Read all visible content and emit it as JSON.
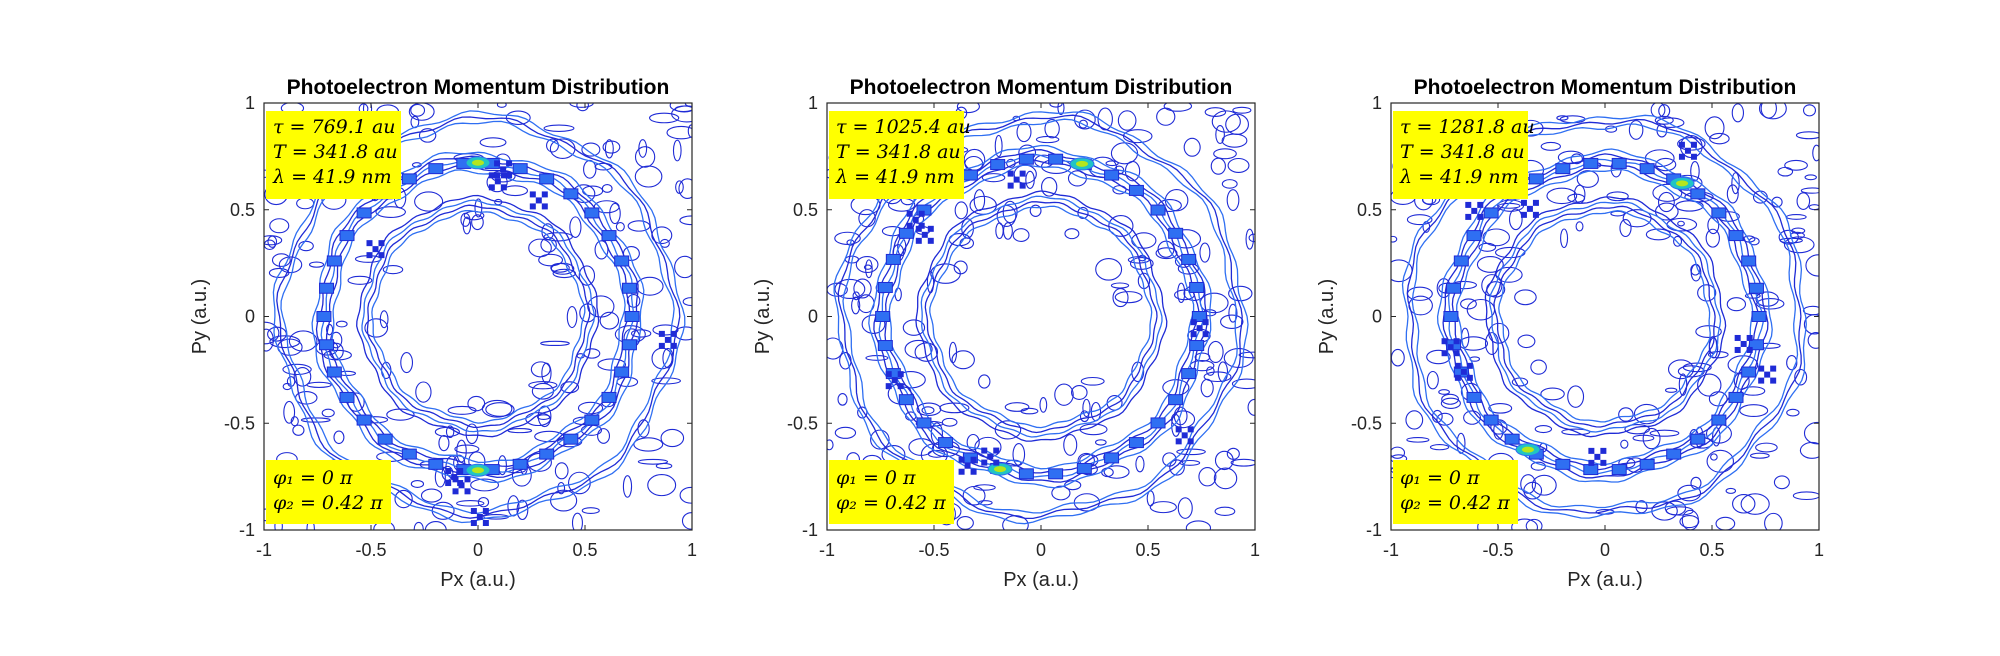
{
  "chart_data": [
    {
      "type": "contour",
      "title": "Photoelectron Momentum Distribution",
      "xlabel": "Px (a.u.)",
      "ylabel": "Py (a.u.)",
      "xlim": [
        -1,
        1
      ],
      "ylim": [
        -1,
        1
      ],
      "xticks": [
        "-1",
        "-0.5",
        "0",
        "0.5",
        "1"
      ],
      "yticks": [
        "-1",
        "-0.5",
        "0",
        "0.5",
        "1"
      ],
      "grid": false,
      "rings": [
        {
          "radius": 0.72,
          "intensity": "high"
        },
        {
          "radius": 0.52,
          "intensity": "medium"
        },
        {
          "radius": 0.92,
          "intensity": "low"
        }
      ],
      "hot_spot_angle_deg": 90,
      "annotation_top": [
        "τ = 769.1 au",
        "T = 341.8 au",
        "λ = 41.9 nm"
      ],
      "annotation_bottom": [
        "φ₁ = 0 π",
        "φ₂ = 0.42 π"
      ],
      "annotation_background": "#ffff00"
    },
    {
      "type": "contour",
      "title": "Photoelectron Momentum Distribution",
      "xlabel": "Px (a.u.)",
      "ylabel": "Py (a.u.)",
      "xlim": [
        -1,
        1
      ],
      "ylim": [
        -1,
        1
      ],
      "xticks": [
        "-1",
        "-0.5",
        "0",
        "0.5",
        "1"
      ],
      "yticks": [
        "-1",
        "-0.5",
        "0",
        "0.5",
        "1"
      ],
      "grid": false,
      "rings": [
        {
          "radius": 0.74,
          "intensity": "high"
        },
        {
          "radius": 0.54,
          "intensity": "medium"
        },
        {
          "radius": 0.93,
          "intensity": "low"
        }
      ],
      "hot_spot_angle_deg": 75,
      "annotation_top": [
        "τ = 1025.4 au",
        "T = 341.8 au",
        "λ = 41.9 nm"
      ],
      "annotation_bottom": [
        "φ₁ = 0 π",
        "φ₂ = 0.42 π"
      ],
      "annotation_background": "#ffff00"
    },
    {
      "type": "contour",
      "title": "Photoelectron Momentum Distribution",
      "xlabel": "Px (a.u.)",
      "ylabel": "Py (a.u.)",
      "xlim": [
        -1,
        1
      ],
      "ylim": [
        -1,
        1
      ],
      "xticks": [
        "-1",
        "-0.5",
        "0",
        "0.5",
        "1"
      ],
      "yticks": [
        "-1",
        "-0.5",
        "0",
        "0.5",
        "1"
      ],
      "grid": false,
      "rings": [
        {
          "radius": 0.72,
          "intensity": "high"
        },
        {
          "radius": 0.52,
          "intensity": "medium"
        },
        {
          "radius": 0.92,
          "intensity": "low"
        }
      ],
      "hot_spot_angle_deg": 60,
      "annotation_top": [
        "τ = 1281.8 au",
        "T = 341.8 au",
        "λ = 41.9 nm"
      ],
      "annotation_bottom": [
        "φ₁ = 0 π",
        "φ₂ = 0.42 π"
      ],
      "annotation_background": "#ffff00"
    }
  ],
  "colors": {
    "contour_low": "#1f2bd6",
    "contour_mid": "#2f6ff2",
    "contour_high": "#21c4c4",
    "contour_peak": "#b5e61d"
  }
}
